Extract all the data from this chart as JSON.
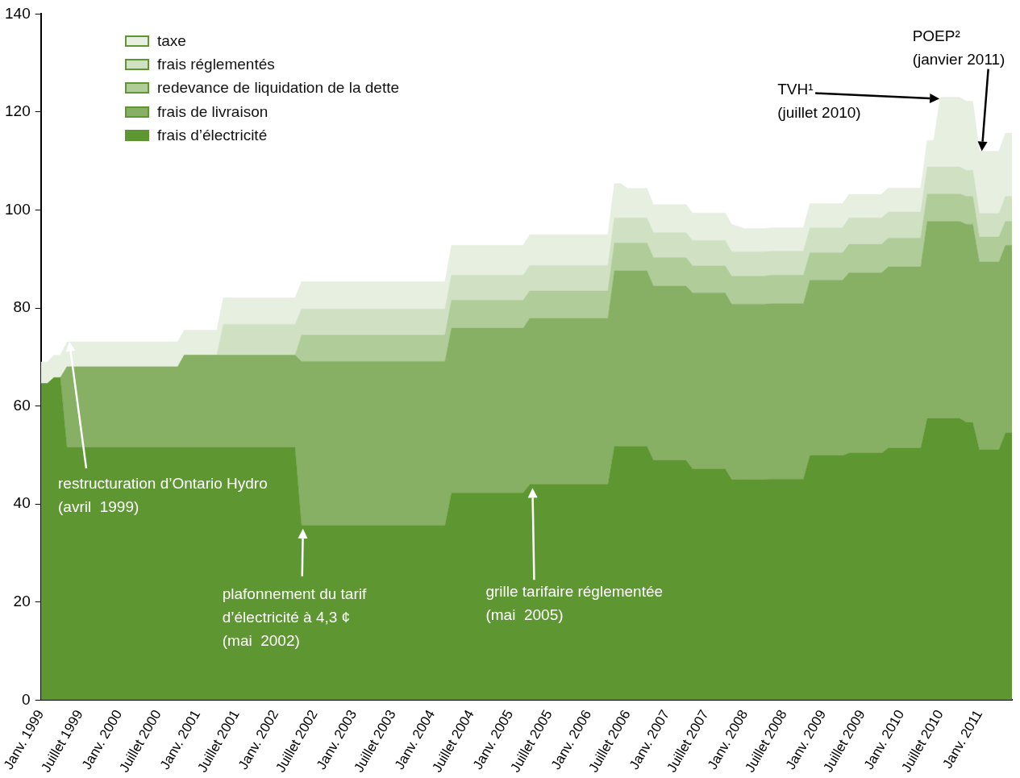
{
  "chart_data": {
    "type": "area",
    "stacked": true,
    "legend": "top left",
    "grid": false,
    "x": [
      "1999-01",
      "1999-02",
      "1999-03",
      "1999-04",
      "1999-05",
      "2000-10",
      "2000-11",
      "2001-04",
      "2001-05",
      "2002-04",
      "2002-05",
      "2004-03",
      "2004-04",
      "2005-03",
      "2005-04",
      "2006-04",
      "2006-05",
      "2006-06",
      "2006-07",
      "2006-10",
      "2006-11",
      "2007-04",
      "2007-05",
      "2007-10",
      "2007-11",
      "2008-01",
      "2008-04",
      "2008-05",
      "2008-10",
      "2008-11",
      "2009-04",
      "2009-05",
      "2009-10",
      "2009-11",
      "2010-04",
      "2010-05",
      "2010-06",
      "2010-07",
      "2010-10",
      "2010-11",
      "2010-12",
      "2011-01",
      "2011-04",
      "2011-05",
      "2011-06"
    ],
    "series": [
      {
        "name": "frais d’électricité",
        "color": "#5e9732",
        "values": [
          64.6,
          64.6,
          65.8,
          65.8,
          51.6,
          51.6,
          51.6,
          51.6,
          51.6,
          51.6,
          35.6,
          35.6,
          42.3,
          42.3,
          44.0,
          44.0,
          51.8,
          51.8,
          51.8,
          51.8,
          48.9,
          48.9,
          47.2,
          47.2,
          45.0,
          45.0,
          45.0,
          45.1,
          45.1,
          49.9,
          49.9,
          50.4,
          50.4,
          51.4,
          51.4,
          57.5,
          57.5,
          57.5,
          57.5,
          56.7,
          56.7,
          51.1,
          51.1,
          54.5,
          54.5
        ]
      },
      {
        "name": "frais de livraison",
        "color": "#87b064",
        "values": [
          0,
          0,
          0,
          0,
          16.4,
          16.4,
          18.8,
          18.8,
          18.8,
          18.8,
          33.5,
          33.5,
          33.6,
          33.6,
          33.9,
          33.9,
          35.8,
          35.8,
          35.8,
          35.8,
          35.6,
          35.6,
          35.9,
          35.9,
          35.8,
          35.8,
          35.8,
          35.8,
          35.8,
          35.8,
          35.8,
          36.8,
          36.8,
          37.0,
          37.0,
          40.2,
          40.2,
          40.2,
          40.2,
          40.4,
          40.4,
          38.3,
          38.3,
          38.3,
          38.3
        ]
      },
      {
        "name": "redevance de liquidation de la dette",
        "color": "#afcc99",
        "values": [
          0,
          0,
          0,
          0,
          0,
          0,
          0,
          0,
          0,
          0,
          5.4,
          5.4,
          5.7,
          5.7,
          5.6,
          5.6,
          5.7,
          5.7,
          5.7,
          5.7,
          5.8,
          5.8,
          5.5,
          5.5,
          5.7,
          5.7,
          5.7,
          5.8,
          5.8,
          5.6,
          5.6,
          5.8,
          5.8,
          5.9,
          5.9,
          5.6,
          5.6,
          5.6,
          5.6,
          5.7,
          5.7,
          5.1,
          5.1,
          4.9,
          4.9
        ]
      },
      {
        "name": "frais réglementés",
        "color": "#cfe0c3",
        "values": [
          0,
          0,
          0,
          0,
          0,
          0,
          0,
          0,
          6.3,
          6.3,
          5.3,
          5.3,
          5.1,
          5.1,
          5.2,
          5.2,
          5.1,
          5.1,
          5.1,
          5.1,
          5.1,
          5.1,
          5.2,
          5.2,
          5.0,
          5.0,
          5.0,
          4.9,
          4.9,
          5.1,
          5.1,
          5.4,
          5.4,
          5.3,
          5.3,
          5.5,
          5.5,
          5.5,
          5.5,
          5.3,
          5.3,
          4.8,
          4.8,
          5.1,
          5.1
        ]
      },
      {
        "name": "taxe",
        "color": "#e6efe0",
        "values": [
          4.4,
          4.4,
          4.6,
          4.6,
          5.1,
          5.1,
          5.1,
          5.1,
          5.4,
          5.4,
          5.6,
          5.6,
          6.1,
          6.1,
          6.3,
          6.3,
          7.0,
          7.0,
          6.0,
          6.0,
          5.7,
          5.7,
          5.6,
          5.6,
          5.6,
          4.7,
          4.7,
          4.8,
          4.8,
          4.9,
          4.9,
          4.8,
          4.8,
          4.9,
          4.9,
          5.4,
          5.4,
          14.2,
          14.2,
          14.1,
          14.1,
          12.7,
          12.7,
          12.9,
          12.9
        ]
      }
    ],
    "xlim": [
      "1999-01",
      "2011-06"
    ],
    "xticks": [
      {
        "value": "1999-01",
        "label": "Janv. 1999"
      },
      {
        "value": "1999-07",
        "label": "Juillet 1999"
      },
      {
        "value": "2000-01",
        "label": "Janv. 2000"
      },
      {
        "value": "2000-07",
        "label": "Juillet 2000"
      },
      {
        "value": "2001-01",
        "label": "Janv. 2001"
      },
      {
        "value": "2001-07",
        "label": "Juillet 2001"
      },
      {
        "value": "2002-01",
        "label": "Janv. 2002"
      },
      {
        "value": "2002-07",
        "label": "Juillet 2002"
      },
      {
        "value": "2003-01",
        "label": "Janv. 2003"
      },
      {
        "value": "2003-07",
        "label": "Juillet 2003"
      },
      {
        "value": "2004-01",
        "label": "Janv. 2004"
      },
      {
        "value": "2004-07",
        "label": "Juillet 2004"
      },
      {
        "value": "2005-01",
        "label": "Janv. 2005"
      },
      {
        "value": "2005-07",
        "label": "Juillet 2005"
      },
      {
        "value": "2006-01",
        "label": "Janv. 2006"
      },
      {
        "value": "2006-07",
        "label": "Juillet 2006"
      },
      {
        "value": "2007-01",
        "label": "Janv. 2007"
      },
      {
        "value": "2007-07",
        "label": "Juillet 2007"
      },
      {
        "value": "2008-01",
        "label": "Janv. 2008"
      },
      {
        "value": "2008-07",
        "label": "Juillet 2008"
      },
      {
        "value": "2009-01",
        "label": "Janv. 2009"
      },
      {
        "value": "2009-07",
        "label": "Juillet 2009"
      },
      {
        "value": "2010-01",
        "label": "Janv. 2010"
      },
      {
        "value": "2010-07",
        "label": "Juillet 2010"
      },
      {
        "value": "2011-01",
        "label": "Janv. 2011"
      }
    ],
    "ylim": [
      0,
      140
    ],
    "yticks": [
      0,
      20,
      40,
      60,
      80,
      100,
      120,
      140
    ],
    "annotations": [
      "restructuration d’Ontario Hydro\n(avril  1999)",
      "plafonnement du tarif\nd’électricité à 4,3 ¢\n(mai  2002)",
      "grille tarifaire réglementée\n(mai  2005)",
      "TVH¹\n(juillet 2010)",
      "POEP²\n(janvier 2011)"
    ]
  }
}
